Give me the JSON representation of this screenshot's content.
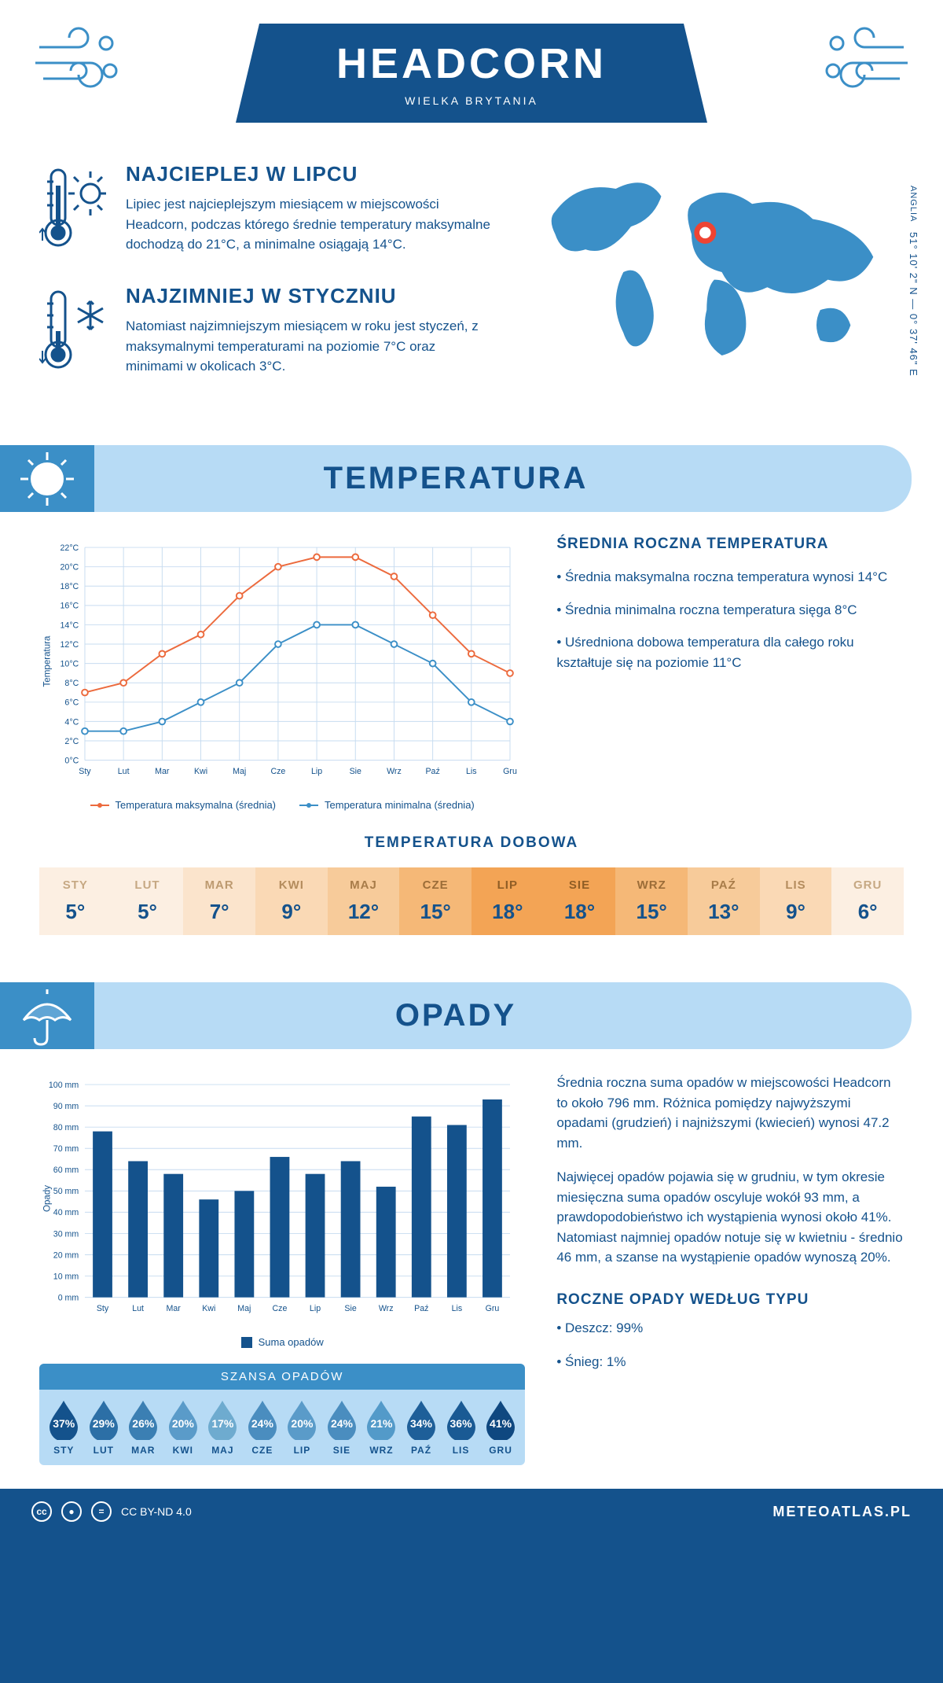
{
  "header": {
    "title": "HEADCORN",
    "subtitle": "WIELKA BRYTANIA"
  },
  "coords": {
    "region": "ANGLIA",
    "lat": "51° 10' 2\" N",
    "lon": "0° 37' 46\" E"
  },
  "facts": {
    "warm": {
      "title": "NAJCIEPLEJ W LIPCU",
      "text": "Lipiec jest najcieplejszym miesiącem w miejscowości Headcorn, podczas którego średnie temperatury maksymalne dochodzą do 21°C, a minimalne osiągają 14°C."
    },
    "cold": {
      "title": "NAJZIMNIEJ W STYCZNIU",
      "text": "Natomiast najzimniejszym miesiącem w roku jest styczeń, z maksymalnymi temperaturami na poziomie 7°C oraz minimami w okolicach 3°C."
    }
  },
  "sections": {
    "temperature": "TEMPERATURA",
    "precipitation": "OPADY"
  },
  "months_short": [
    "Sty",
    "Lut",
    "Mar",
    "Kwi",
    "Maj",
    "Cze",
    "Lip",
    "Sie",
    "Wrz",
    "Paź",
    "Lis",
    "Gru"
  ],
  "months_upper": [
    "STY",
    "LUT",
    "MAR",
    "KWI",
    "MAJ",
    "CZE",
    "LIP",
    "SIE",
    "WRZ",
    "PAŹ",
    "LIS",
    "GRU"
  ],
  "temp_chart": {
    "type": "line",
    "ylabel": "Temperatura",
    "ylim": [
      0,
      22
    ],
    "ytick_step": 2,
    "max_color": "#ec6a3d",
    "min_color": "#3b8fc7",
    "grid_color": "#c7dcf0",
    "max_series": [
      7,
      8,
      11,
      13,
      17,
      20,
      21,
      21,
      19,
      15,
      11,
      9
    ],
    "min_series": [
      3,
      3,
      4,
      6,
      8,
      12,
      14,
      14,
      12,
      10,
      6,
      4
    ],
    "legend_max": "Temperatura maksymalna (średnia)",
    "legend_min": "Temperatura minimalna (średnia)"
  },
  "temp_info": {
    "heading": "ŚREDNIA ROCZNA TEMPERATURA",
    "b1": "• Średnia maksymalna roczna temperatura wynosi 14°C",
    "b2": "• Średnia minimalna roczna temperatura sięga 8°C",
    "b3": "• Uśredniona dobowa temperatura dla całego roku kształtuje się na poziomie 11°C"
  },
  "daily_temp": {
    "heading": "TEMPERATURA DOBOWA",
    "values": [
      "5°",
      "5°",
      "7°",
      "9°",
      "12°",
      "15°",
      "18°",
      "18°",
      "15°",
      "13°",
      "9°",
      "6°"
    ],
    "colors": [
      "#fcefe2",
      "#fcefe2",
      "#fbe4cc",
      "#fad9b5",
      "#f7cb9a",
      "#f5b877",
      "#f3a455",
      "#f3a455",
      "#f5b877",
      "#f7cb9a",
      "#fad9b5",
      "#fcefe2"
    ],
    "label_colors": [
      "#c6a883",
      "#c6a883",
      "#bd9a70",
      "#b48c5d",
      "#a87c49",
      "#9c6d38",
      "#8f5d25",
      "#8f5d25",
      "#9c6d38",
      "#a87c49",
      "#b48c5d",
      "#c6a883"
    ]
  },
  "precip_chart": {
    "type": "bar",
    "ylabel": "Opady",
    "ylim": [
      0,
      100
    ],
    "ytick_step": 10,
    "bar_color": "#14528c",
    "grid_color": "#c7dcf0",
    "values": [
      78,
      64,
      58,
      46,
      50,
      66,
      58,
      64,
      52,
      85,
      81,
      93
    ],
    "legend": "Suma opadów"
  },
  "precip_info": {
    "p1": "Średnia roczna suma opadów w miejscowości Headcorn to około 796 mm. Różnica pomiędzy najwyższymi opadami (grudzień) i najniższymi (kwiecień) wynosi 47.2 mm.",
    "p2": "Najwięcej opadów pojawia się w grudniu, w tym okresie miesięczna suma opadów oscyluje wokół 93 mm, a prawdopodobieństwo ich wystąpienia wynosi około 41%. Natomiast najmniej opadów notuje się w kwietniu - średnio 46 mm, a szanse na wystąpienie opadów wynoszą 20%.",
    "type_heading": "ROCZNE OPADY WEDŁUG TYPU",
    "rain": "• Deszcz: 99%",
    "snow": "• Śnieg: 1%"
  },
  "chance": {
    "heading": "SZANSA OPADÓW",
    "values": [
      "37%",
      "29%",
      "26%",
      "20%",
      "17%",
      "24%",
      "20%",
      "24%",
      "21%",
      "34%",
      "36%",
      "41%"
    ],
    "colors": [
      "#14528c",
      "#2c6fa6",
      "#3b7fb3",
      "#5a9bc9",
      "#6eabcf",
      "#4a8dbf",
      "#5a9bc9",
      "#4a8dbf",
      "#539ac9",
      "#1e5f99",
      "#1a5a94",
      "#0f4880"
    ]
  },
  "footer": {
    "license": "CC BY-ND 4.0",
    "site": "METEOATLAS.PL"
  },
  "colors": {
    "primary": "#14528c",
    "light_blue": "#b7dbf5",
    "mid_blue": "#3b8fc7"
  }
}
